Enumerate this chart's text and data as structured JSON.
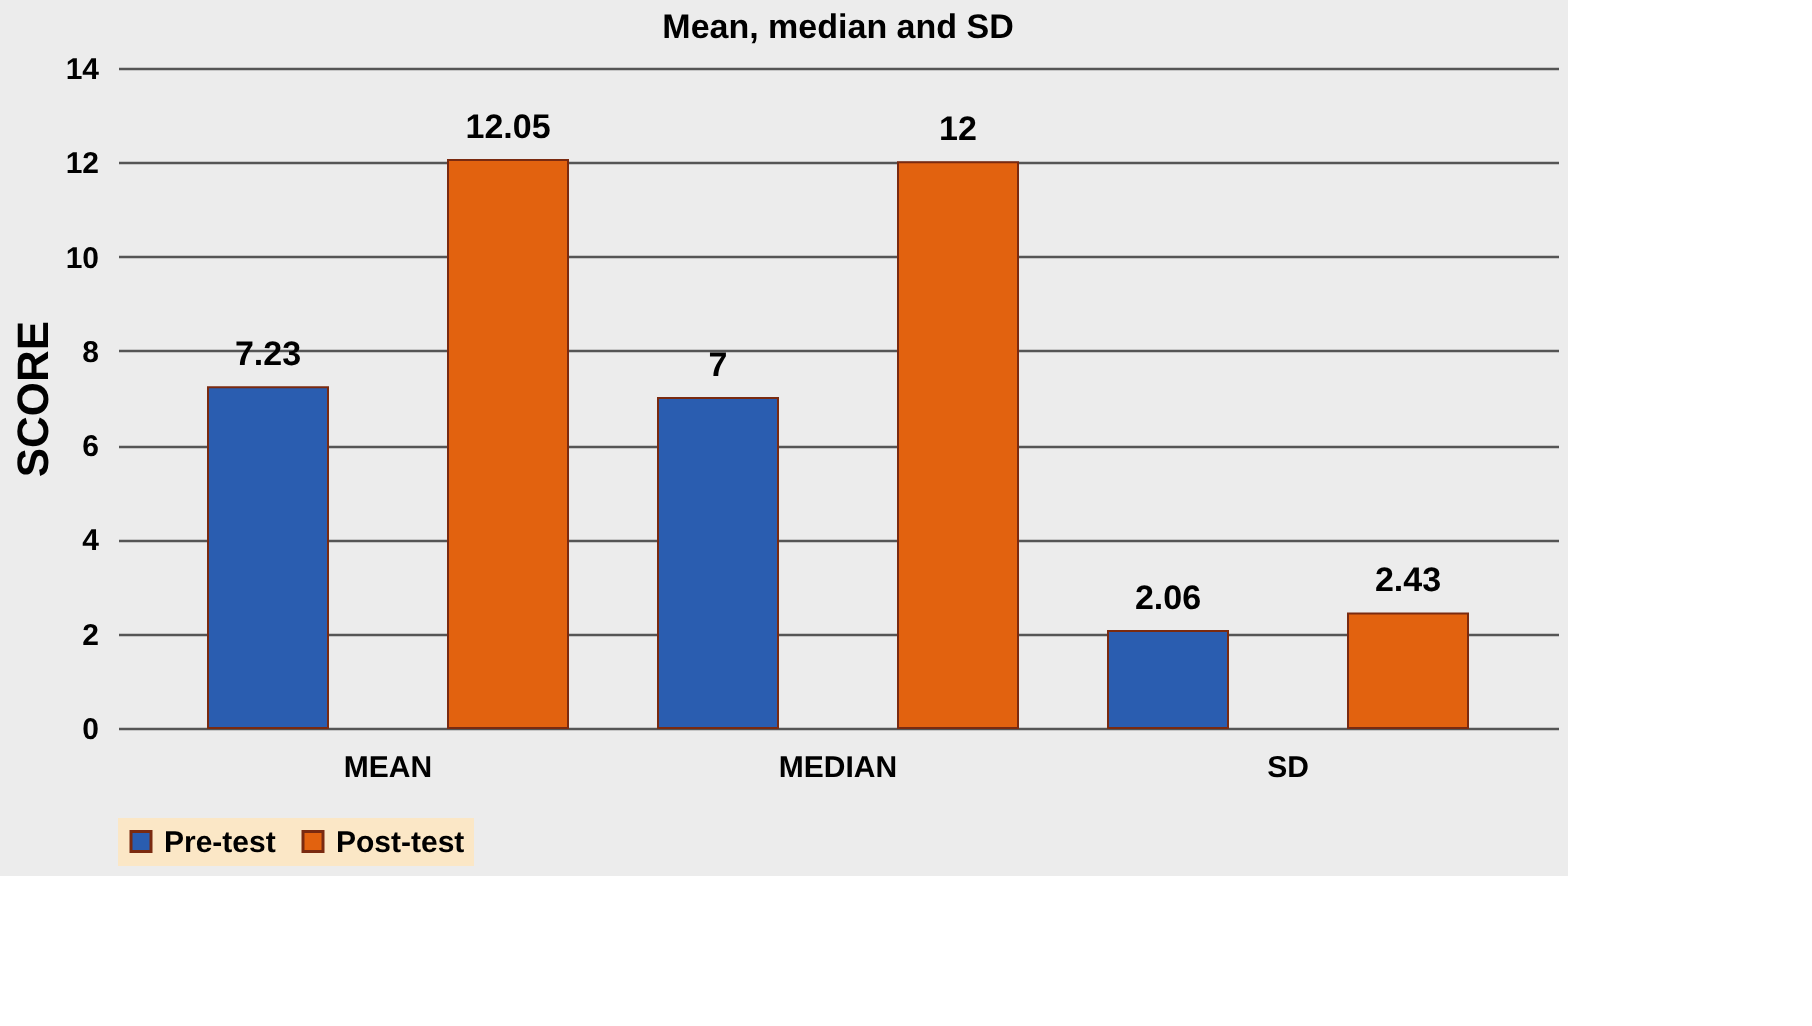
{
  "chart_data": {
    "type": "bar",
    "title": "Mean, median and SD",
    "ylabel": "SCORE",
    "categories": [
      "MEAN",
      "MEDIAN",
      "SD"
    ],
    "series": [
      {
        "name": "Pre-test",
        "color": "#2a5db0",
        "values": [
          7.23,
          7,
          2.06
        ]
      },
      {
        "name": "Post-test",
        "color": "#e2620f",
        "values": [
          12.05,
          12,
          2.43
        ]
      }
    ],
    "ylim": [
      0,
      14
    ],
    "yticks": [
      0,
      2,
      4,
      6,
      8,
      10,
      12,
      14
    ],
    "grid": "y",
    "legend": "bottom",
    "data_labels": true
  }
}
